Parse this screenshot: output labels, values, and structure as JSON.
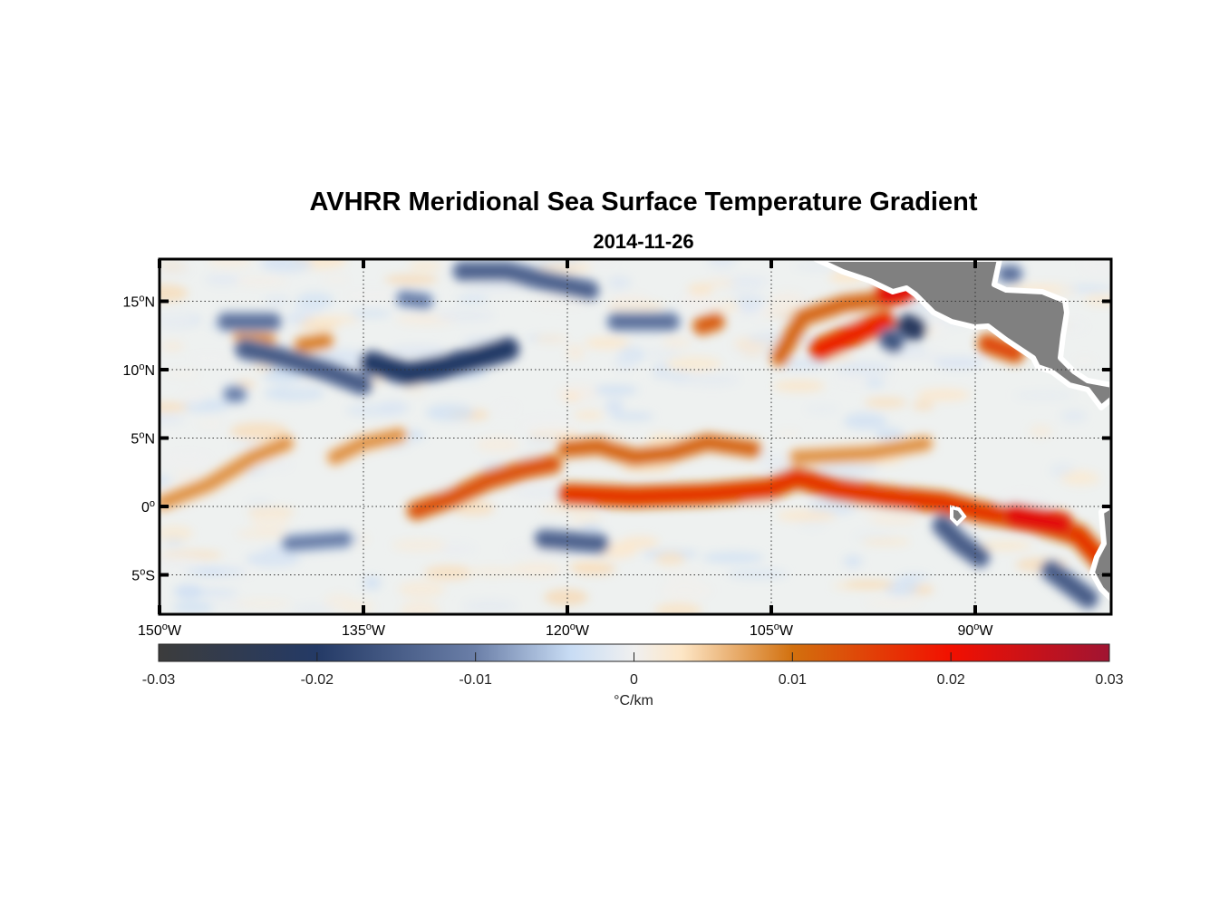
{
  "title": "AVHRR Meridional Sea Surface Temperature Gradient",
  "subtitle": "2014-11-26",
  "chart_data": {
    "type": "heatmap",
    "title": "AVHRR Meridional Sea Surface Temperature Gradient",
    "subtitle": "2014-11-26",
    "lon_range": [
      -150,
      -80
    ],
    "lat_range": [
      -8,
      18.2
    ],
    "grid": true,
    "x_ticks": [
      {
        "value": -150,
        "deg": "150",
        "hemi": "W"
      },
      {
        "value": -135,
        "deg": "135",
        "hemi": "W"
      },
      {
        "value": -120,
        "deg": "120",
        "hemi": "W"
      },
      {
        "value": -105,
        "deg": "105",
        "hemi": "W"
      },
      {
        "value": -90,
        "deg": "90",
        "hemi": "W"
      }
    ],
    "y_ticks": [
      {
        "value": 15,
        "deg": "15",
        "hemi": "N"
      },
      {
        "value": 10,
        "deg": "10",
        "hemi": "N"
      },
      {
        "value": 5,
        "deg": "5",
        "hemi": "N"
      },
      {
        "value": 0,
        "deg": "0",
        "hemi": ""
      },
      {
        "value": -5,
        "deg": "5",
        "hemi": "S"
      }
    ],
    "colorbar": {
      "range": [
        -0.03,
        0.03
      ],
      "ticks": [
        "-0.03",
        "-0.02",
        "-0.01",
        "0",
        "0.01",
        "0.02",
        "0.03"
      ],
      "tick_values": [
        -0.03,
        -0.02,
        -0.01,
        0,
        0.01,
        0.02,
        0.03
      ],
      "label": "°C/km",
      "stops": [
        {
          "v": -0.03,
          "c": "#3c3c3c"
        },
        {
          "v": -0.02,
          "c": "#243a66"
        },
        {
          "v": -0.01,
          "c": "#6b7fa8"
        },
        {
          "v": -0.004,
          "c": "#c8dcf4"
        },
        {
          "v": 0,
          "c": "#f0f0f0"
        },
        {
          "v": 0.003,
          "c": "#fde6c6"
        },
        {
          "v": 0.01,
          "c": "#d2700e"
        },
        {
          "v": 0.02,
          "c": "#f21000"
        },
        {
          "v": 0.03,
          "c": "#a01432"
        }
      ]
    },
    "land_color": "#808080",
    "features": [
      {
        "value": 0.013,
        "lon": [
          -131.1,
          -128.5,
          -125.8,
          -123.1,
          -121.1
        ],
        "lat": [
          -0.3,
          0.6,
          1.9,
          2.7,
          3.1
        ]
      },
      {
        "value": 0.016,
        "lon": [
          -119.9,
          -115.1,
          -109.7,
          -105.1,
          -103.1,
          -100.4,
          -96.4,
          -92.4,
          -89.7,
          -85.7,
          -82.4,
          -80.7
        ],
        "lat": [
          0.9,
          0.7,
          0.9,
          1.3,
          2.1,
          1.3,
          0.7,
          0.3,
          -0.4,
          -1.1,
          -2.1,
          -4.0
        ]
      },
      {
        "value": 0.011,
        "lon": [
          -120.1,
          -117.7,
          -115.1,
          -112.4,
          -109.7,
          -106.4
        ],
        "lat": [
          4.2,
          4.4,
          3.6,
          3.9,
          4.7,
          4.2
        ]
      },
      {
        "value": 0.008,
        "lon": [
          -149.7,
          -146.4,
          -143.1,
          -140.7
        ],
        "lat": [
          0.3,
          1.6,
          3.6,
          4.6
        ]
      },
      {
        "value": 0.008,
        "lon": [
          -137.1,
          -135.1,
          -132.4
        ],
        "lat": [
          3.6,
          4.6,
          5.2
        ]
      },
      {
        "value": 0.011,
        "lon": [
          -104.4,
          -102.7,
          -99.7,
          -96.4
        ],
        "lat": [
          10.9,
          13.8,
          14.8,
          15.2
        ]
      },
      {
        "value": 0.018,
        "lon": [
          -101.4,
          -99.1,
          -96.7
        ],
        "lat": [
          11.5,
          12.5,
          13.5
        ]
      },
      {
        "value": 0.014,
        "lon": [
          -89.1,
          -87.1
        ],
        "lat": [
          11.9,
          11.2
        ]
      },
      {
        "value": 0.022,
        "lon": [
          -96.5,
          -95.1
        ],
        "lat": [
          15.5,
          15.8
        ]
      },
      {
        "value": 0.012,
        "lon": [
          -110.1,
          -109.1
        ],
        "lat": [
          13.2,
          13.5
        ]
      },
      {
        "value": 0.008,
        "lon": [
          -103.1,
          -97.7,
          -93.7
        ],
        "lat": [
          3.6,
          3.9,
          4.6
        ]
      },
      {
        "value": 0.022,
        "lon": [
          -87.1,
          -83.7
        ],
        "lat": [
          -0.7,
          -1.3
        ]
      },
      {
        "value": 0.008,
        "lon": [
          -144.0,
          -142.0
        ],
        "lat": [
          12.5,
          12.2
        ]
      },
      {
        "value": 0.009,
        "lon": [
          -139.5,
          -137.8
        ],
        "lat": [
          11.8,
          12.1
        ]
      },
      {
        "value": -0.015,
        "lon": [
          -143.7,
          -141.1,
          -137.7,
          -135.1
        ],
        "lat": [
          11.5,
          10.9,
          9.9,
          8.9
        ]
      },
      {
        "value": -0.02,
        "lon": [
          -134.4,
          -131.7,
          -129.1,
          -126.4,
          -124.4
        ],
        "lat": [
          10.5,
          9.7,
          10.2,
          10.9,
          11.5
        ]
      },
      {
        "value": -0.012,
        "lon": [
          -145.1,
          -141.7
        ],
        "lat": [
          13.5,
          13.5
        ]
      },
      {
        "value": -0.014,
        "lon": [
          -127.7,
          -124.4,
          -121.7,
          -118.4
        ],
        "lat": [
          17.2,
          17.2,
          16.5,
          15.8
        ]
      },
      {
        "value": -0.012,
        "lon": [
          -116.4,
          -112.4
        ],
        "lat": [
          13.5,
          13.5
        ]
      },
      {
        "value": -0.022,
        "lon": [
          -94.9,
          -94.5
        ],
        "lat": [
          13.2,
          13.0
        ]
      },
      {
        "value": -0.016,
        "lon": [
          -96.3,
          -96.0
        ],
        "lat": [
          12.2,
          12.0
        ]
      },
      {
        "value": -0.015,
        "lon": [
          -92.4,
          -91.1,
          -89.7
        ],
        "lat": [
          -1.4,
          -2.7,
          -3.7
        ]
      },
      {
        "value": -0.014,
        "lon": [
          -121.7,
          -117.7
        ],
        "lat": [
          -2.4,
          -2.7
        ]
      },
      {
        "value": -0.01,
        "lon": [
          -140.4,
          -136.4
        ],
        "lat": [
          -2.7,
          -2.4
        ]
      },
      {
        "value": -0.015,
        "lon": [
          -84.4,
          -81.7
        ],
        "lat": [
          -4.7,
          -6.7
        ]
      },
      {
        "value": -0.01,
        "lon": [
          -144.7,
          -144.2
        ],
        "lat": [
          8.2,
          8.2
        ]
      },
      {
        "value": -0.012,
        "lon": [
          -87.7,
          -87.2
        ],
        "lat": [
          17.0,
          17.0
        ]
      },
      {
        "value": -0.01,
        "lon": [
          -132.0,
          -130.5
        ],
        "lat": [
          15.2,
          15.0
        ]
      }
    ]
  }
}
